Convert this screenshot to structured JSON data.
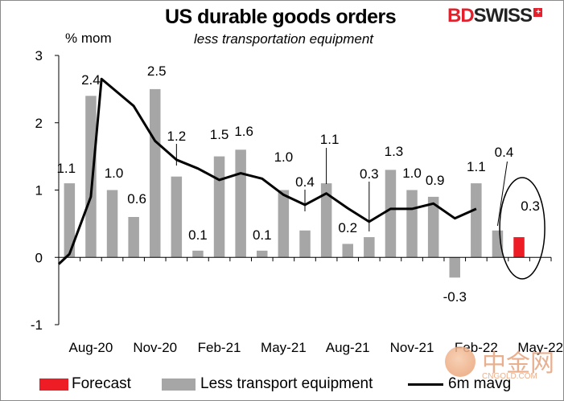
{
  "header": {
    "title": "US durable goods orders",
    "subtitle": "less transportation equipment",
    "y_unit": "% mom",
    "logo_bd": "BD",
    "logo_swiss": "SWISS",
    "logo_cross": "+"
  },
  "watermark": {
    "zh": "中金网",
    "en": "CNGOLD.COM"
  },
  "legend": {
    "forecast": "Forecast",
    "bars": "Less transport equipment",
    "line": "6m mavg"
  },
  "colors": {
    "bar": "#a6a6a6",
    "forecast": "#ee1c25",
    "line": "#000000"
  },
  "chart_data": {
    "type": "bar",
    "title": "US durable goods orders",
    "subtitle": "less transportation equipment",
    "ylabel": "% mom",
    "ylim": [
      -1,
      3
    ],
    "yticks": [
      -1,
      0,
      1,
      2,
      3
    ],
    "x_tick_labels": [
      "Aug-20",
      "Nov-20",
      "Feb-21",
      "May-21",
      "Aug-21",
      "Nov-21",
      "Feb-22",
      "May-22"
    ],
    "grid": false,
    "legend_position": "bottom",
    "categories": [
      "Jul-20",
      "Aug-20",
      "Sep-20",
      "Oct-20",
      "Nov-20",
      "Dec-20",
      "Jan-21",
      "Feb-21",
      "Mar-21",
      "Apr-21",
      "May-21",
      "Jun-21",
      "Jul-21",
      "Aug-21",
      "Sep-21",
      "Oct-21",
      "Nov-21",
      "Dec-21",
      "Jan-22",
      "Feb-22",
      "Mar-22",
      "Apr-22",
      "May-22"
    ],
    "series": [
      {
        "name": "Less transport equipment",
        "type": "bar",
        "values": [
          1.1,
          2.4,
          1.0,
          0.6,
          2.5,
          1.2,
          0.1,
          1.5,
          1.6,
          0.1,
          1.0,
          0.4,
          1.1,
          0.2,
          0.3,
          1.3,
          1.0,
          0.9,
          -0.3,
          1.1,
          0.4,
          null,
          null
        ],
        "labels": [
          "1.1",
          "2.4",
          "1.0",
          "0.6",
          "2.5",
          "1.2",
          "0.1",
          "1.5",
          "1.6",
          "0.1",
          "1.0",
          "0.4",
          "1.1",
          "0.2",
          "0.3",
          "1.3",
          "1.0",
          "0.9",
          "-0.3",
          "1.1",
          "0.4",
          "",
          ""
        ]
      },
      {
        "name": "Forecast",
        "type": "bar",
        "values": [
          null,
          null,
          null,
          null,
          null,
          null,
          null,
          null,
          null,
          null,
          null,
          null,
          null,
          null,
          null,
          null,
          null,
          null,
          null,
          null,
          null,
          0.3,
          null
        ],
        "labels": [
          "",
          "",
          "",
          "",
          "",
          "",
          "",
          "",
          "",
          "",
          "",
          "",
          "",
          "",
          "",
          "",
          "",
          "",
          "",
          "",
          "",
          "0.3",
          ""
        ]
      },
      {
        "name": "6m mavg",
        "type": "line",
        "x": [
          -0.5,
          0.0,
          1.0,
          1.5,
          3.0,
          4.0,
          5.0,
          6.0,
          7.0,
          8.0,
          9.0,
          10.0,
          11.0,
          12.0,
          13.0,
          14.0,
          15.0,
          16.0,
          17.0,
          18.0,
          19.0
        ],
        "values": [
          -0.1,
          0.05,
          0.9,
          2.65,
          2.25,
          1.73,
          1.45,
          1.32,
          1.15,
          1.25,
          1.17,
          0.93,
          0.78,
          0.95,
          0.73,
          0.53,
          0.72,
          0.72,
          0.8,
          0.58,
          0.72
        ]
      }
    ],
    "annotations": [
      {
        "text": "Forecast highlight",
        "shape": "ellipse",
        "category": "Apr-22"
      }
    ]
  }
}
